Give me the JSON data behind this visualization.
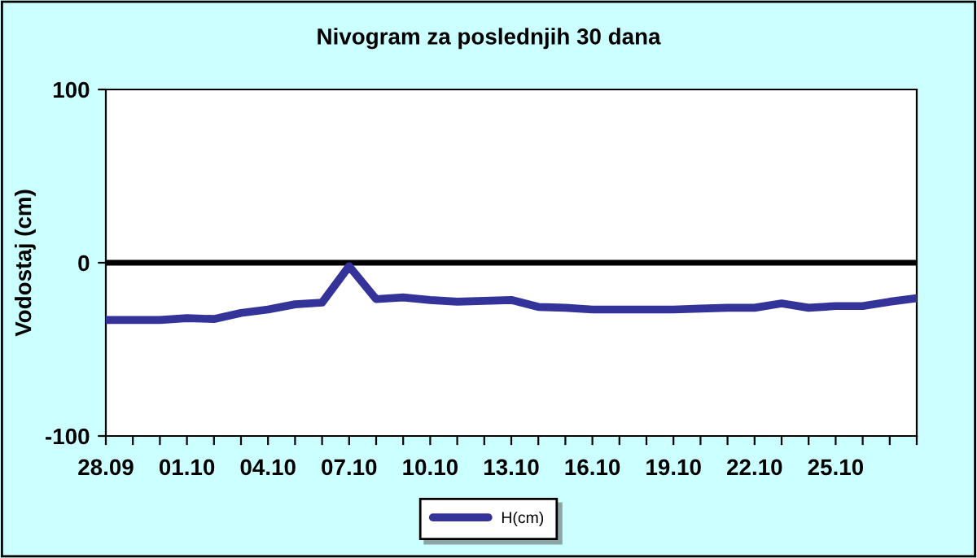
{
  "chart_data": {
    "type": "line",
    "title": "Nivogram za poslednjih 30 dana",
    "ylabel": "Vodostaj (cm)",
    "categories": [
      "28.09",
      null,
      null,
      "01.10",
      null,
      null,
      "04.10",
      null,
      null,
      "07.10",
      null,
      null,
      "10.10",
      null,
      null,
      "13.10",
      null,
      null,
      "16.10",
      null,
      null,
      "19.10",
      null,
      null,
      "22.10",
      null,
      null,
      "25.10",
      null,
      null,
      null
    ],
    "series": [
      {
        "name": "H(cm)",
        "color": "#333399",
        "values": [
          -33,
          -33,
          -33,
          -32,
          -32.5,
          -29,
          -27,
          -24,
          -23,
          -2,
          -21,
          -20,
          -21.5,
          -22.5,
          -22,
          -21.5,
          -25.5,
          -26,
          -27,
          -27,
          -27,
          -27,
          -26.5,
          -26,
          -26,
          -23.5,
          -26,
          -25,
          -25,
          -22.5,
          -20.5
        ]
      }
    ],
    "ylim": [
      -100,
      100
    ],
    "yticks": [
      -100,
      0,
      100
    ],
    "ref_lines": [
      {
        "axis": "y",
        "value": 0,
        "color": "#000000"
      }
    ],
    "grid": false,
    "legend": "bottom",
    "marker": "none",
    "line_style": "solid"
  }
}
